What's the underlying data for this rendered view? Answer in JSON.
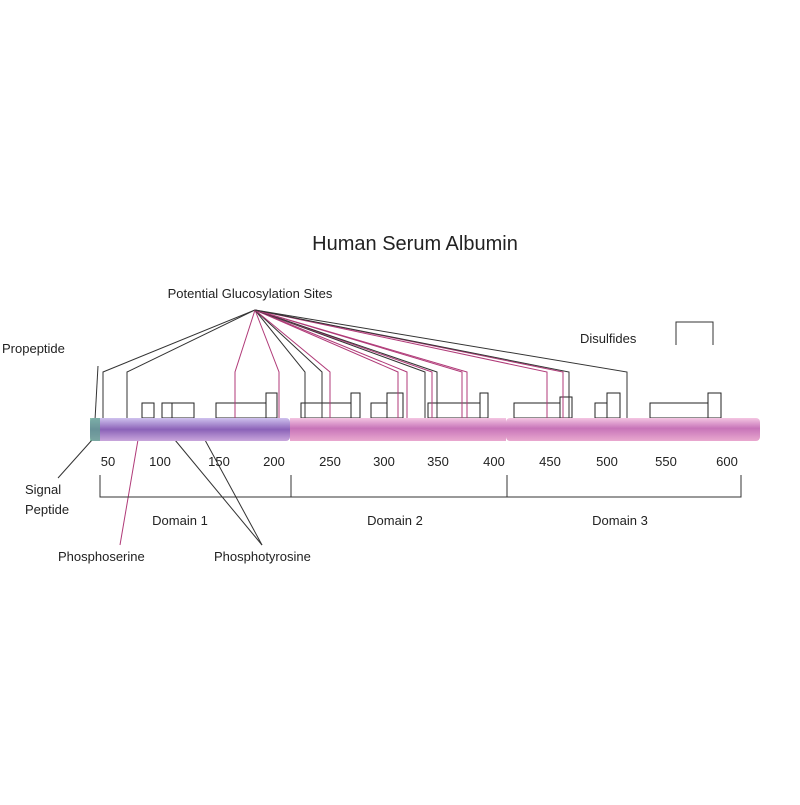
{
  "title": "Human Serum Albumin",
  "labels": {
    "glucosylation": "Potential Glucosylation Sites",
    "propeptide": "Propeptide",
    "disulfides": "Disulfides",
    "signal_peptide": [
      "Signal",
      "Peptide"
    ],
    "phosphoserine": "Phosphoserine",
    "phosphotyrosine": "Phosphotyrosine"
  },
  "positions": [
    50,
    100,
    150,
    200,
    250,
    300,
    350,
    400,
    450,
    500,
    550,
    600
  ],
  "domains": [
    "Domain 1",
    "Domain 2",
    "Domain 3"
  ]
}
